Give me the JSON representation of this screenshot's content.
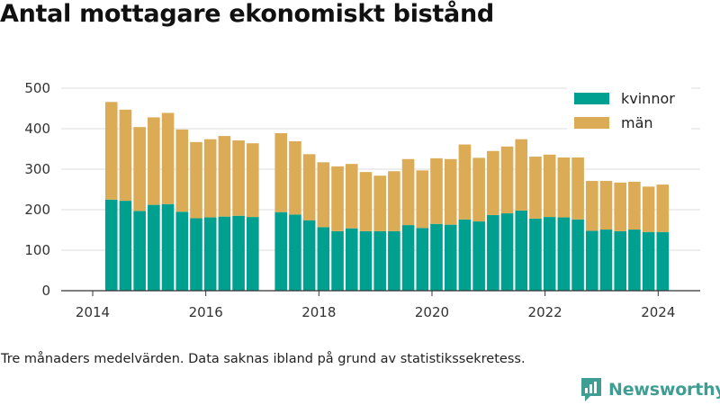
{
  "title": "Antal mottagare ekonomiskt bistånd",
  "caption": "Tre månaders medelvärden. Data saknas ibland på grund av statistikssekretess.",
  "brand": {
    "name": "Newsworthy",
    "icon": "newsworthy-logo-icon",
    "color": "#3f9e93"
  },
  "colors": {
    "kvinnor": "#00a090",
    "man": "#dbab55",
    "grid": "#dddddd",
    "axis": "#333333"
  },
  "chart_data": {
    "type": "bar",
    "stacked": true,
    "title": "Antal mottagare ekonomiskt bistånd",
    "xlabel": "",
    "ylabel": "",
    "ylim": [
      0,
      500
    ],
    "xlim": [
      2014.0,
      2024.8
    ],
    "yticks": [
      0,
      100,
      200,
      300,
      400,
      500
    ],
    "xticks": [
      2014,
      2016,
      2018,
      2020,
      2022,
      2024
    ],
    "grid": true,
    "legend_position": "top-right",
    "x": [
      2014.33,
      2014.58,
      2014.83,
      2015.08,
      2015.33,
      2015.58,
      2015.83,
      2016.08,
      2016.33,
      2016.58,
      2016.83,
      2017.33,
      2017.58,
      2017.83,
      2018.08,
      2018.33,
      2018.58,
      2018.83,
      2019.08,
      2019.33,
      2019.58,
      2019.83,
      2020.08,
      2020.33,
      2020.58,
      2020.83,
      2021.08,
      2021.33,
      2021.58,
      2021.83,
      2022.08,
      2022.33,
      2022.58,
      2022.83,
      2023.08,
      2023.33,
      2023.58,
      2023.83,
      2024.08
    ],
    "series": [
      {
        "name": "kvinnor",
        "color": "#00a090",
        "values": [
          225,
          222,
          197,
          212,
          214,
          195,
          179,
          181,
          183,
          185,
          182,
          194,
          188,
          174,
          157,
          147,
          154,
          147,
          147,
          147,
          162,
          155,
          165,
          163,
          176,
          171,
          187,
          191,
          198,
          178,
          182,
          181,
          176,
          148,
          151,
          147,
          151,
          145,
          145
        ]
      },
      {
        "name": "män",
        "color": "#dbab55",
        "values": [
          241,
          225,
          207,
          216,
          225,
          203,
          188,
          193,
          199,
          186,
          182,
          195,
          181,
          163,
          160,
          160,
          159,
          146,
          137,
          148,
          163,
          142,
          162,
          162,
          185,
          157,
          158,
          165,
          176,
          153,
          154,
          148,
          153,
          123,
          120,
          120,
          118,
          112,
          117
        ]
      }
    ]
  }
}
